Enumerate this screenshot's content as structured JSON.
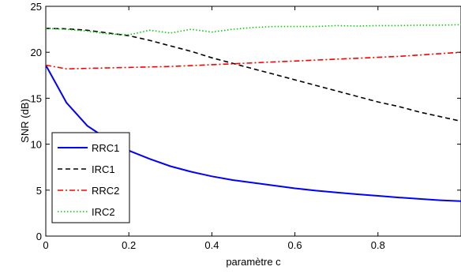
{
  "chart_data": {
    "type": "line",
    "xlabel": "paramètre c",
    "ylabel": "SNR (dB)",
    "xlim": [
      0,
      1
    ],
    "ylim": [
      0,
      25
    ],
    "xticks": [
      0,
      0.2,
      0.4,
      0.6,
      0.8
    ],
    "xtick_labels": [
      "0",
      "0.2",
      "0.4",
      "0.6",
      "0.8"
    ],
    "yticks": [
      0,
      5,
      10,
      15,
      20,
      25
    ],
    "ytick_labels": [
      "0",
      "5",
      "10",
      "15",
      "20",
      "25"
    ],
    "grid": false,
    "legend": {
      "placement": "bottom-left"
    },
    "series": [
      {
        "name": "RRC1",
        "color": "#0000ff",
        "style": "solid",
        "x": [
          0,
          0.05,
          0.1,
          0.15,
          0.2,
          0.25,
          0.3,
          0.35,
          0.4,
          0.45,
          0.5,
          0.55,
          0.6,
          0.65,
          0.7,
          0.75,
          0.8,
          0.85,
          0.9,
          0.95,
          1.0
        ],
        "y": [
          18.6,
          14.5,
          12.0,
          10.5,
          9.3,
          8.4,
          7.6,
          7.0,
          6.5,
          6.1,
          5.8,
          5.5,
          5.2,
          4.95,
          4.75,
          4.55,
          4.38,
          4.2,
          4.05,
          3.9,
          3.8
        ]
      },
      {
        "name": "IRC1",
        "color": "#000000",
        "style": "dashed",
        "x": [
          0,
          0.05,
          0.1,
          0.15,
          0.2,
          0.25,
          0.3,
          0.35,
          0.4,
          0.45,
          0.5,
          0.55,
          0.6,
          0.65,
          0.7,
          0.75,
          0.8,
          0.85,
          0.9,
          0.95,
          1.0
        ],
        "y": [
          22.6,
          22.55,
          22.4,
          22.1,
          21.8,
          21.3,
          20.7,
          20.1,
          19.4,
          18.8,
          18.2,
          17.6,
          17.0,
          16.4,
          15.8,
          15.2,
          14.6,
          14.1,
          13.5,
          13.0,
          12.5
        ]
      },
      {
        "name": "RRC2",
        "color": "#ff0000",
        "style": "dashdot",
        "x": [
          0,
          0.05,
          0.1,
          0.15,
          0.2,
          0.25,
          0.3,
          0.35,
          0.4,
          0.45,
          0.5,
          0.55,
          0.6,
          0.65,
          0.7,
          0.75,
          0.8,
          0.85,
          0.9,
          0.95,
          1.0
        ],
        "y": [
          18.6,
          18.2,
          18.25,
          18.3,
          18.35,
          18.4,
          18.45,
          18.55,
          18.65,
          18.75,
          18.85,
          18.95,
          19.05,
          19.15,
          19.25,
          19.35,
          19.45,
          19.55,
          19.7,
          19.85,
          20.0
        ]
      },
      {
        "name": "IRC2",
        "color": "#00cc00",
        "style": "dotted",
        "x": [
          0,
          0.05,
          0.1,
          0.15,
          0.2,
          0.25,
          0.3,
          0.35,
          0.4,
          0.45,
          0.5,
          0.55,
          0.6,
          0.65,
          0.7,
          0.75,
          0.8,
          0.85,
          0.9,
          0.95,
          1.0
        ],
        "y": [
          22.6,
          22.5,
          22.3,
          22.0,
          21.9,
          22.4,
          22.1,
          22.5,
          22.2,
          22.5,
          22.7,
          22.8,
          22.8,
          22.8,
          22.9,
          22.85,
          22.9,
          22.9,
          22.95,
          22.95,
          23.0
        ]
      }
    ]
  }
}
